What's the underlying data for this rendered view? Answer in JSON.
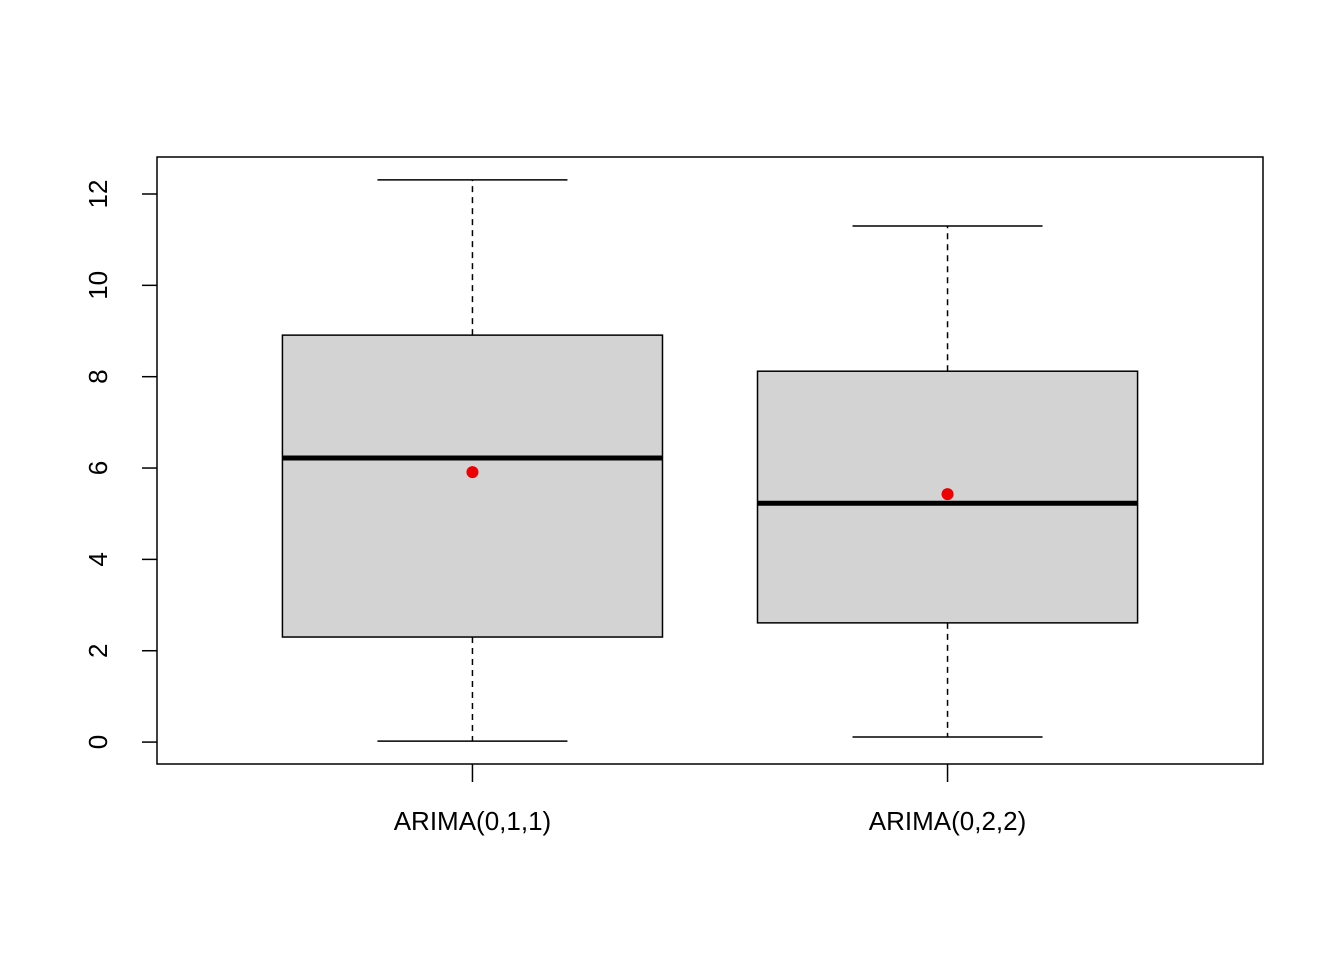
{
  "chart_data": {
    "type": "boxplot",
    "categories": [
      "ARIMA(0,1,1)",
      "ARIMA(0,2,2)"
    ],
    "min": [
      0.02,
      0.11
    ],
    "q1": [
      2.3,
      2.61
    ],
    "median": [
      6.22,
      5.23
    ],
    "q3": [
      8.91,
      8.12
    ],
    "max": [
      12.31,
      11.3
    ],
    "mean": [
      5.91,
      5.43
    ],
    "box_color": "#d3d3d3",
    "mean_color": "#ee0000",
    "ylim": [
      -0.48,
      12.81
    ],
    "yticks": [
      0,
      2,
      4,
      6,
      8,
      10,
      12
    ]
  }
}
